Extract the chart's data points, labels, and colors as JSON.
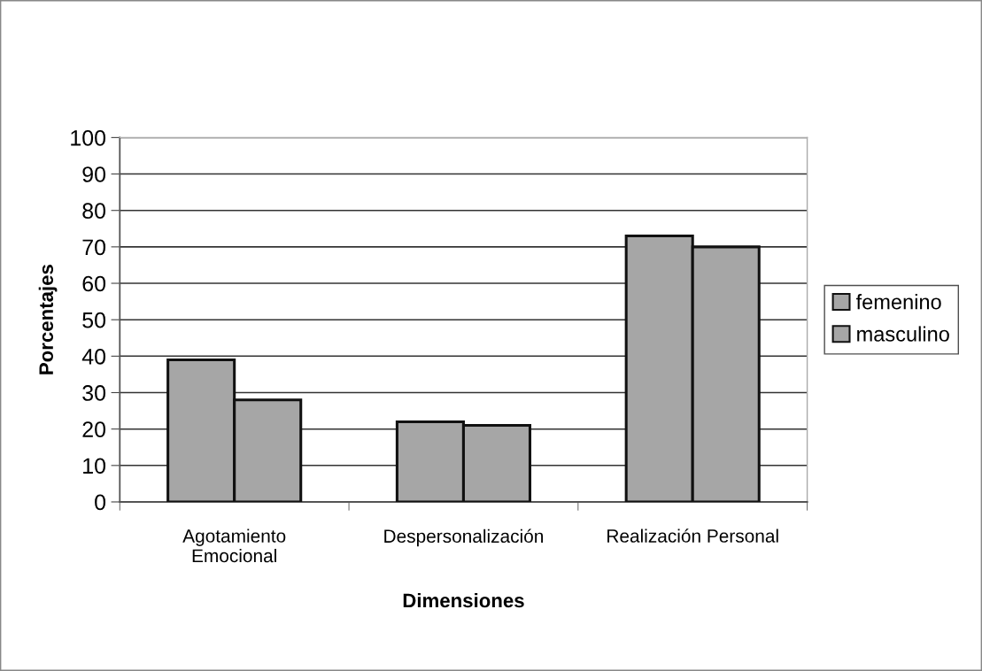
{
  "chart_data": {
    "type": "bar",
    "xlabel": "Dimensiones",
    "ylabel": "Porcentajes",
    "categories": [
      "Agotamiento\nEmocional",
      "Despersonalización",
      "Realización Personal"
    ],
    "series": [
      {
        "name": "femenino",
        "color": "#a6a6a6",
        "values": [
          39,
          22,
          73
        ]
      },
      {
        "name": "masculino",
        "color": "#a6a6a6",
        "values": [
          28,
          21,
          70
        ]
      }
    ],
    "ylim": [
      0,
      100
    ],
    "yticks": [
      0,
      10,
      20,
      30,
      40,
      50,
      60,
      70,
      80,
      90,
      100
    ],
    "grid": "y",
    "legend": "right"
  }
}
